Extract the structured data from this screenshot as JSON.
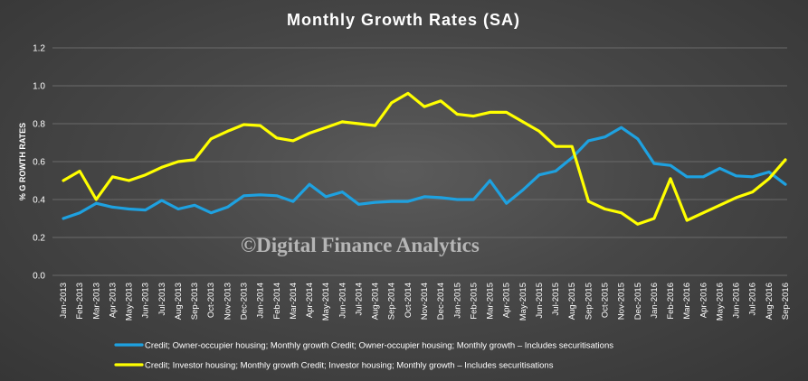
{
  "chart_data": {
    "type": "line",
    "title": "Monthly  Growth  Rates  (SA)",
    "ylabel": "% G ROWTH RATES",
    "xlabel": "",
    "ylim": [
      0,
      1.2
    ],
    "yticks": [
      "0.0",
      "0.2",
      "0.4",
      "0.6",
      "0.8",
      "1.0",
      "1.2"
    ],
    "grid": true,
    "legend_position": "bottom",
    "categories": [
      "Jan-2013",
      "Feb-2013",
      "Mar-2013",
      "Apr-2013",
      "May-2013",
      "Jun-2013",
      "Jul-2013",
      "Aug-2013",
      "Sep-2013",
      "Oct-2013",
      "Nov-2013",
      "Dec-2013",
      "Jan-2014",
      "Feb-2014",
      "Mar-2014",
      "Apr-2014",
      "May-2014",
      "Jun-2014",
      "Jul-2014",
      "Aug-2014",
      "Sep-2014",
      "Oct-2014",
      "Nov-2014",
      "Dec-2014",
      "Jan-2015",
      "Feb-2015",
      "Mar-2015",
      "Apr-2015",
      "May-2015",
      "Jun-2015",
      "Jul-2015",
      "Aug-2015",
      "Sep-2015",
      "Oct-2015",
      "Nov-2015",
      "Dec-2015",
      "Jan-2016",
      "Feb-2016",
      "Mar-2016",
      "Apr-2016",
      "May-2016",
      "Jun-2016",
      "Jul-2016",
      "Aug-2016",
      "Sep-2016"
    ],
    "series": [
      {
        "name": "Credit; Owner-occupier housing; Monthly growth Credit; Owner-occupier housing; Monthly growth – Includes securitisations",
        "color": "#1ea1e0",
        "values": [
          0.3,
          0.33,
          0.38,
          0.36,
          0.35,
          0.345,
          0.395,
          0.35,
          0.37,
          0.33,
          0.36,
          0.42,
          0.425,
          0.42,
          0.39,
          0.48,
          0.415,
          0.44,
          0.375,
          0.385,
          0.39,
          0.39,
          0.415,
          0.41,
          0.4,
          0.4,
          0.5,
          0.38,
          0.45,
          0.53,
          0.55,
          0.62,
          0.71,
          0.73,
          0.78,
          0.72,
          0.59,
          0.58,
          0.52,
          0.52,
          0.565,
          0.525,
          0.52,
          0.545,
          0.48
        ]
      },
      {
        "name": "Credit; Investor housing; Monthly growth Credit; Investor housing; Monthly growth – Includes securitisations",
        "color": "#ffff00",
        "values": [
          0.5,
          0.55,
          0.4,
          0.52,
          0.5,
          0.53,
          0.57,
          0.6,
          0.61,
          0.72,
          0.76,
          0.795,
          0.79,
          0.725,
          0.71,
          0.75,
          0.78,
          0.81,
          0.8,
          0.79,
          0.91,
          0.96,
          0.89,
          0.92,
          0.85,
          0.84,
          0.86,
          0.86,
          0.81,
          0.76,
          0.68,
          0.68,
          0.39,
          0.35,
          0.33,
          0.27,
          0.3,
          0.51,
          0.29,
          0.33,
          0.37,
          0.41,
          0.44,
          0.51,
          0.61
        ]
      }
    ]
  },
  "watermark": "©Digital Finance Analytics"
}
